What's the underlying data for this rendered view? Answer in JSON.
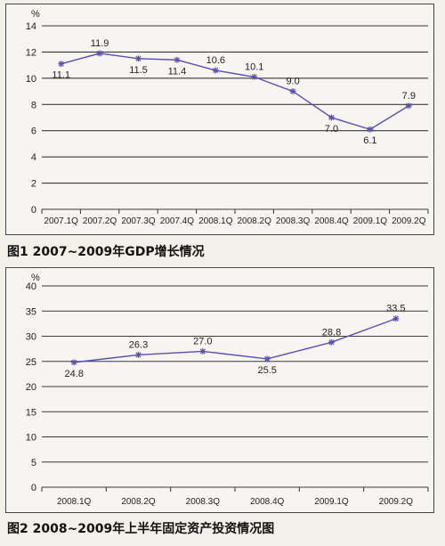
{
  "chart_data": [
    {
      "type": "line",
      "title": "图1 2007~2009年GDP增长情况",
      "ylabel": "%",
      "xlabel": "",
      "categories": [
        "2007.1Q",
        "2007.2Q",
        "2007.3Q",
        "2007.4Q",
        "2008.1Q",
        "2008.2Q",
        "2008.3Q",
        "2008.4Q",
        "2009.1Q",
        "2009.2Q"
      ],
      "values": [
        11.1,
        11.9,
        11.5,
        11.4,
        10.6,
        10.1,
        9.0,
        7.0,
        6.1,
        7.9
      ],
      "data_labels": [
        "11.1",
        "11.9",
        "11.5",
        "11.4",
        "10.6",
        "10.1",
        "9.0",
        "7.0",
        "6.1",
        "7.9"
      ],
      "y_ticks": [
        "14",
        "12",
        "10",
        "8",
        "6",
        "4",
        "2",
        "0"
      ],
      "ylim": [
        0,
        14
      ],
      "grid": true,
      "line_color": "#5a4fb0"
    },
    {
      "type": "line",
      "title": "图2 2008~2009年上半年固定资产投资情况图",
      "ylabel": "%",
      "xlabel": "",
      "categories": [
        "2008.1Q",
        "2008.2Q",
        "2008.3Q",
        "2008.4Q",
        "2009.1Q",
        "2009.2Q"
      ],
      "values": [
        24.8,
        26.3,
        27.0,
        25.5,
        28.8,
        33.5
      ],
      "data_labels": [
        "24.8",
        "26.3",
        "27.0",
        "25.5",
        "28.8",
        "33.5"
      ],
      "y_ticks": [
        "40",
        "35",
        "30",
        "25",
        "20",
        "15",
        "10",
        "5",
        "0"
      ],
      "ylim": [
        0,
        40
      ],
      "grid": true,
      "line_color": "#5a4fb0"
    }
  ]
}
